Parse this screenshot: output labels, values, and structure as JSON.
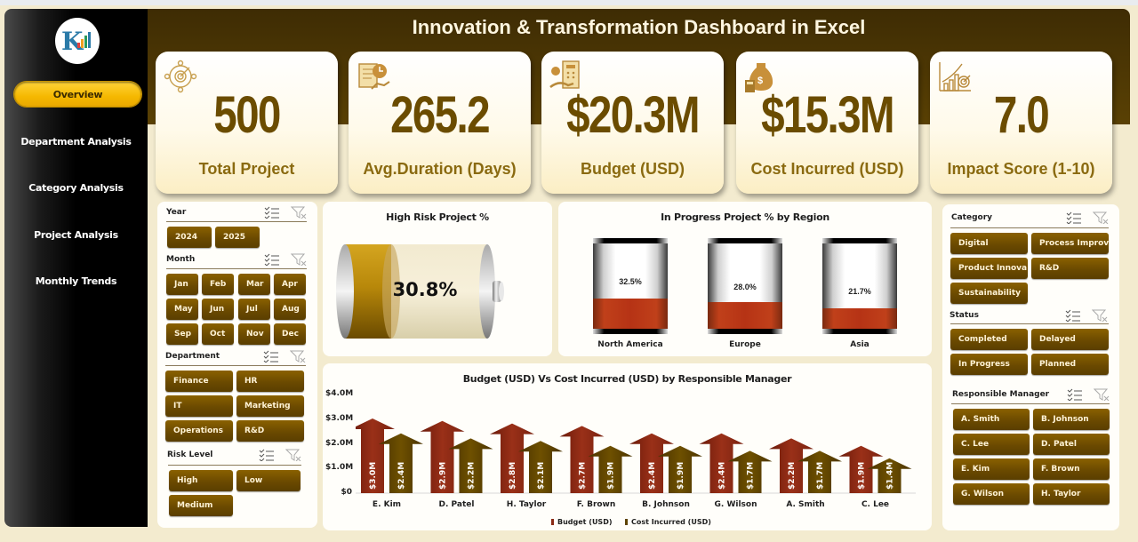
{
  "header": {
    "title": "Innovation & Transformation Dashboard in Excel"
  },
  "sidebar": {
    "logo": "company-logo",
    "items": [
      {
        "label": "Overview",
        "active": true
      },
      {
        "label": "Department Analysis",
        "active": false
      },
      {
        "label": "Category Analysis",
        "active": false
      },
      {
        "label": "Project Analysis",
        "active": false
      },
      {
        "label": "Monthly Trends",
        "active": false
      }
    ]
  },
  "kpis": [
    {
      "value": "500",
      "label": "Total Project",
      "icon": "target-people-icon"
    },
    {
      "value": "265.2",
      "label": "Avg.Duration (Days)",
      "icon": "document-clock-icon"
    },
    {
      "value": "$20.3M",
      "label": "Budget (USD)",
      "icon": "budget-calculator-icon"
    },
    {
      "value": "$15.3M",
      "label": "Cost Incurred (USD)",
      "icon": "money-bag-icon"
    },
    {
      "value": "7.0",
      "label": "Impact Score (1-10)",
      "icon": "growth-target-icon"
    }
  ],
  "slicers_left": {
    "year": {
      "title": "Year",
      "items": [
        "2024",
        "2025"
      ]
    },
    "month": {
      "title": "Month",
      "items": [
        "Jan",
        "Feb",
        "Mar",
        "Apr",
        "May",
        "Jun",
        "Jul",
        "Aug",
        "Sep",
        "Oct",
        "Nov",
        "Dec"
      ]
    },
    "department": {
      "title": "Department",
      "items": [
        "Finance",
        "HR",
        "IT",
        "Marketing",
        "Operations",
        "R&D"
      ]
    },
    "risk": {
      "title": "Risk Level",
      "items": [
        "High",
        "Low",
        "Medium"
      ]
    }
  },
  "slicers_right": {
    "category": {
      "title": "Category",
      "items": [
        "Digital",
        "Process Improv...",
        "Product Innova...",
        "R&D",
        "Sustainability"
      ]
    },
    "status": {
      "title": "Status",
      "items": [
        "Completed",
        "Delayed",
        "In Progress",
        "Planned"
      ]
    },
    "manager": {
      "title": "Responsible Manager",
      "items": [
        "A. Smith",
        "B. Johnson",
        "C. Lee",
        "D. Patel",
        "E. Kim",
        "F. Brown",
        "G. Wilson",
        "H. Taylor"
      ]
    }
  },
  "high_risk": {
    "title": "High Risk Project %",
    "value": "30.8%",
    "fill_pct": 30.8
  },
  "region": {
    "title": "In Progress Project % by Region",
    "items": [
      {
        "label": "North America",
        "value": "32.5%",
        "pct": 32.5
      },
      {
        "label": "Europe",
        "value": "28.0%",
        "pct": 28.0
      },
      {
        "label": "Asia",
        "value": "21.7%",
        "pct": 21.7
      }
    ]
  },
  "budget_chart": {
    "title": "Budget (USD) Vs Cost Incurred (USD) by Responsible Manager",
    "y_ticks": [
      "$4.0M",
      "$3.0M",
      "$2.0M",
      "$1.0M",
      "$0"
    ],
    "legend": [
      "Budget (USD)",
      "Cost Incurred (USD)"
    ]
  },
  "chart_data": [
    {
      "type": "bar",
      "title": "Budget (USD) Vs Cost Incurred (USD) by Responsible Manager",
      "categories": [
        "E. Kim",
        "D. Patel",
        "H. Taylor",
        "F. Brown",
        "B. Johnson",
        "G. Wilson",
        "A. Smith",
        "C. Lee"
      ],
      "series": [
        {
          "name": "Budget (USD)",
          "values": [
            3.0,
            2.9,
            2.8,
            2.7,
            2.4,
            2.4,
            2.2,
            1.9
          ],
          "labels": [
            "$3.0M",
            "$2.9M",
            "$2.8M",
            "$2.7M",
            "$2.4M",
            "$2.4M",
            "$2.2M",
            "$1.9M"
          ],
          "color": "#8a2a14"
        },
        {
          "name": "Cost Incurred (USD)",
          "values": [
            2.4,
            2.2,
            2.1,
            1.9,
            1.9,
            1.7,
            1.7,
            1.4
          ],
          "labels": [
            "$2.4M",
            "$2.2M",
            "$2.1M",
            "$1.9M",
            "$1.9M",
            "$1.7M",
            "$1.7M",
            "$1.4M"
          ],
          "color": "#5e4300"
        }
      ],
      "xlabel": "",
      "ylabel": "",
      "ylim": [
        0,
        4.0
      ],
      "y_ticks": [
        "$0",
        "$1.0M",
        "$2.0M",
        "$3.0M",
        "$4.0M"
      ],
      "legend_position": "bottom"
    },
    {
      "type": "bar",
      "title": "In Progress Project % by Region",
      "categories": [
        "North America",
        "Europe",
        "Asia"
      ],
      "values": [
        32.5,
        28.0,
        21.7
      ]
    },
    {
      "type": "bar",
      "title": "High Risk Project %",
      "categories": [
        "High Risk"
      ],
      "values": [
        30.8
      ]
    }
  ],
  "colors": {
    "brand_dark": "#4a3404",
    "accent_gold": "#f5b800",
    "button_brown": "#6b4a00",
    "budget_red": "#8a2a14",
    "cost_brown": "#5e4300"
  }
}
